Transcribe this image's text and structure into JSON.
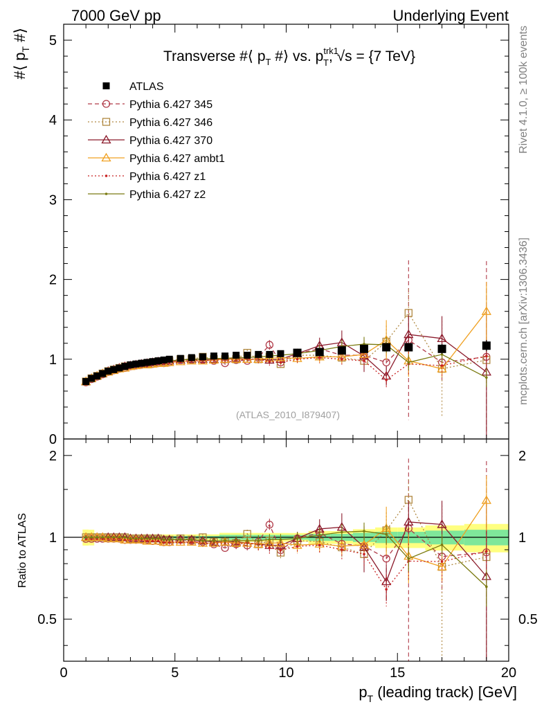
{
  "header": {
    "left": "7000 GeV pp",
    "right": "Underlying Event"
  },
  "chart_data": {
    "type": "scatter",
    "title": "Transverse #⟨ p_T #⟩ vs. p_T^trk1, √s = {7 TeV}",
    "title_parts": {
      "prefix": "Transverse #⟨ p",
      "sub1": "T",
      "mid": " #⟩ vs. p",
      "sup2": "trk1",
      "sub2": "T",
      "suffix": ", √s = {7 TeV}"
    },
    "ylabel_main": "#⟨ p_T #⟩",
    "ylabel_main_parts": {
      "main": "#⟨ p",
      "sub": "T",
      "end": " #⟩"
    },
    "ylabel_ratio": "Ratio to ATLAS",
    "xlabel": "p_T (leading track) [GeV]",
    "xlabel_parts": {
      "main": "p",
      "sub": "T",
      "rest": " (leading track) [GeV]"
    },
    "analysis_tag": "(ATLAS_2010_I879407)",
    "side_label_rivet": "Rivet 4.1.0, ≥ 100k events",
    "side_label_mcplots": "mcplots.cern.ch [arXiv:1306.3436]",
    "xlim": [
      0,
      20
    ],
    "ylim_main": [
      0,
      5.2
    ],
    "ylim_ratio": [
      0.35,
      2.3
    ],
    "x_ticks": [
      0,
      5,
      10,
      15,
      20
    ],
    "y_ticks_main": [
      0,
      1,
      2,
      3,
      4,
      5
    ],
    "y_ticks_ratio": [
      0.5,
      1,
      2
    ],
    "x": [
      1.0,
      1.25,
      1.5,
      1.75,
      2.0,
      2.25,
      2.5,
      2.75,
      3.0,
      3.25,
      3.5,
      3.75,
      4.0,
      4.25,
      4.5,
      4.75,
      5.25,
      5.75,
      6.25,
      6.75,
      7.25,
      7.75,
      8.25,
      8.75,
      9.25,
      9.75,
      10.5,
      11.5,
      12.5,
      13.5,
      14.5,
      15.5,
      17.0,
      19.0
    ],
    "atlas": [
      0.72,
      0.76,
      0.79,
      0.82,
      0.85,
      0.87,
      0.89,
      0.91,
      0.93,
      0.94,
      0.95,
      0.96,
      0.97,
      0.98,
      0.99,
      1.0,
      1.01,
      1.02,
      1.03,
      1.04,
      1.04,
      1.05,
      1.05,
      1.06,
      1.06,
      1.07,
      1.08,
      1.09,
      1.11,
      1.13,
      1.15,
      1.15,
      1.13,
      1.17
    ],
    "atlas_errors": [
      0.01,
      0.01,
      0.01,
      0.01,
      0.01,
      0.01,
      0.01,
      0.01,
      0.01,
      0.01,
      0.01,
      0.01,
      0.01,
      0.01,
      0.01,
      0.01,
      0.01,
      0.01,
      0.01,
      0.01,
      0.02,
      0.02,
      0.02,
      0.02,
      0.02,
      0.02,
      0.02,
      0.03,
      0.03,
      0.04,
      0.05,
      0.05,
      0.06,
      0.07
    ],
    "series": [
      {
        "name": "Pythia 6.427 345",
        "color": "#b03a48",
        "marker": "circle",
        "line": "dashed",
        "values": [
          0.71,
          0.75,
          0.78,
          0.81,
          0.84,
          0.86,
          0.88,
          0.89,
          0.91,
          0.92,
          0.93,
          0.94,
          0.94,
          0.95,
          0.95,
          0.96,
          0.99,
          0.99,
          0.99,
          0.98,
          0.95,
          0.99,
          0.98,
          1.02,
          1.18,
          0.96,
          1.07,
          1.13,
          1.05,
          1.05,
          0.96,
          1.24,
          0.96,
          1.03
        ],
        "errors": [
          0.01,
          0.01,
          0.01,
          0.01,
          0.01,
          0.01,
          0.01,
          0.01,
          0.01,
          0.01,
          0.01,
          0.01,
          0.01,
          0.01,
          0.02,
          0.02,
          0.02,
          0.02,
          0.03,
          0.03,
          0.03,
          0.04,
          0.04,
          0.05,
          0.06,
          0.05,
          0.06,
          0.07,
          0.08,
          0.09,
          0.3,
          1.0,
          0.25,
          1.2
        ]
      },
      {
        "name": "Pythia 6.427 346",
        "color": "#b08840",
        "marker": "square",
        "line": "dotted",
        "values": [
          0.72,
          0.76,
          0.79,
          0.82,
          0.85,
          0.87,
          0.89,
          0.91,
          0.92,
          0.93,
          0.94,
          0.95,
          0.96,
          0.97,
          0.97,
          0.98,
          1.0,
          1.0,
          1.03,
          1.0,
          1.0,
          1.0,
          1.08,
          1.0,
          1.03,
          0.94,
          1.05,
          1.05,
          1.02,
          0.98,
          1.22,
          1.58,
          0.88,
          0.99
        ],
        "errors": [
          0.01,
          0.01,
          0.01,
          0.01,
          0.01,
          0.01,
          0.01,
          0.01,
          0.01,
          0.01,
          0.01,
          0.01,
          0.01,
          0.01,
          0.02,
          0.02,
          0.02,
          0.02,
          0.03,
          0.03,
          0.03,
          0.04,
          0.04,
          0.05,
          0.05,
          0.05,
          0.06,
          0.07,
          0.08,
          0.09,
          0.2,
          0.3,
          0.6,
          0.9
        ]
      },
      {
        "name": "Pythia 6.427 370",
        "color": "#8b1a2b",
        "marker": "triangle",
        "line": "solid",
        "values": [
          0.72,
          0.76,
          0.79,
          0.82,
          0.85,
          0.87,
          0.89,
          0.91,
          0.92,
          0.93,
          0.94,
          0.95,
          0.96,
          0.97,
          0.97,
          0.98,
          0.99,
          1.0,
          1.0,
          1.0,
          1.0,
          1.01,
          1.0,
          1.0,
          0.99,
          1.0,
          1.07,
          1.17,
          1.21,
          1.04,
          0.79,
          1.31,
          1.26,
          0.84
        ],
        "errors": [
          0.01,
          0.01,
          0.01,
          0.01,
          0.01,
          0.01,
          0.01,
          0.01,
          0.01,
          0.01,
          0.01,
          0.01,
          0.01,
          0.01,
          0.02,
          0.02,
          0.02,
          0.02,
          0.03,
          0.03,
          0.03,
          0.04,
          0.04,
          0.05,
          0.05,
          0.05,
          0.06,
          0.1,
          0.15,
          0.2,
          0.12,
          0.25,
          0.28,
          0.8
        ]
      },
      {
        "name": "Pythia 6.427 ambt1",
        "color": "#f0a020",
        "marker": "triangle",
        "line": "solid",
        "values": [
          0.72,
          0.76,
          0.79,
          0.82,
          0.84,
          0.86,
          0.88,
          0.89,
          0.91,
          0.92,
          0.93,
          0.93,
          0.94,
          0.95,
          0.95,
          0.96,
          0.97,
          0.98,
          0.98,
          0.99,
          1.0,
          1.0,
          1.0,
          1.0,
          1.01,
          1.02,
          1.01,
          1.03,
          1.03,
          1.06,
          1.24,
          0.98,
          0.88,
          1.6
        ],
        "errors": [
          0.01,
          0.01,
          0.01,
          0.01,
          0.01,
          0.01,
          0.01,
          0.01,
          0.01,
          0.01,
          0.01,
          0.01,
          0.01,
          0.01,
          0.02,
          0.02,
          0.02,
          0.02,
          0.03,
          0.03,
          0.03,
          0.04,
          0.04,
          0.05,
          0.05,
          0.05,
          0.06,
          0.07,
          0.08,
          0.09,
          0.25,
          0.2,
          0.1,
          0.37
        ]
      },
      {
        "name": "Pythia 6.427 z1",
        "color": "#c82020",
        "marker": "dot",
        "line": "dotted",
        "values": [
          0.71,
          0.75,
          0.78,
          0.81,
          0.84,
          0.86,
          0.88,
          0.89,
          0.91,
          0.92,
          0.93,
          0.93,
          0.94,
          0.95,
          0.95,
          0.96,
          0.97,
          0.98,
          0.98,
          0.99,
          0.99,
          0.99,
          1.0,
          1.0,
          0.97,
          0.96,
          1.0,
          1.02,
          1.0,
          0.98,
          0.74,
          0.94,
          0.92,
          1.04
        ],
        "errors": [
          0.01,
          0.01,
          0.01,
          0.01,
          0.01,
          0.01,
          0.01,
          0.01,
          0.01,
          0.01,
          0.01,
          0.01,
          0.01,
          0.01,
          0.02,
          0.02,
          0.02,
          0.02,
          0.03,
          0.03,
          0.03,
          0.04,
          0.04,
          0.05,
          0.05,
          0.05,
          0.06,
          0.07,
          0.08,
          0.09,
          0.1,
          0.15,
          0.15,
          0.2
        ]
      },
      {
        "name": "Pythia 6.427 z2",
        "color": "#7a7a10",
        "marker": "dot",
        "line": "solid",
        "values": [
          0.72,
          0.76,
          0.79,
          0.82,
          0.85,
          0.87,
          0.89,
          0.91,
          0.92,
          0.93,
          0.94,
          0.95,
          0.96,
          0.97,
          0.97,
          0.98,
          0.99,
          1.0,
          1.0,
          1.01,
          1.01,
          1.02,
          1.02,
          1.03,
          1.04,
          1.05,
          1.07,
          1.11,
          1.16,
          1.19,
          1.18,
          0.96,
          1.06,
          0.77
        ],
        "errors": [
          0.01,
          0.01,
          0.01,
          0.01,
          0.01,
          0.01,
          0.01,
          0.01,
          0.01,
          0.01,
          0.01,
          0.01,
          0.01,
          0.01,
          0.02,
          0.02,
          0.02,
          0.02,
          0.03,
          0.03,
          0.03,
          0.04,
          0.04,
          0.05,
          0.05,
          0.05,
          0.06,
          0.07,
          0.08,
          0.09,
          0.1,
          0.1,
          0.1,
          0.12
        ]
      }
    ],
    "legend": {
      "position": "top-left",
      "entries": [
        "ATLAS",
        "Pythia 6.427 345",
        "Pythia 6.427 346",
        "Pythia 6.427 370",
        "Pythia 6.427 ambt1",
        "Pythia 6.427 z1",
        "Pythia 6.427 z2"
      ]
    },
    "ratio_band_colors": {
      "inner": "#7fe79a",
      "outer": "#ffff80"
    }
  }
}
